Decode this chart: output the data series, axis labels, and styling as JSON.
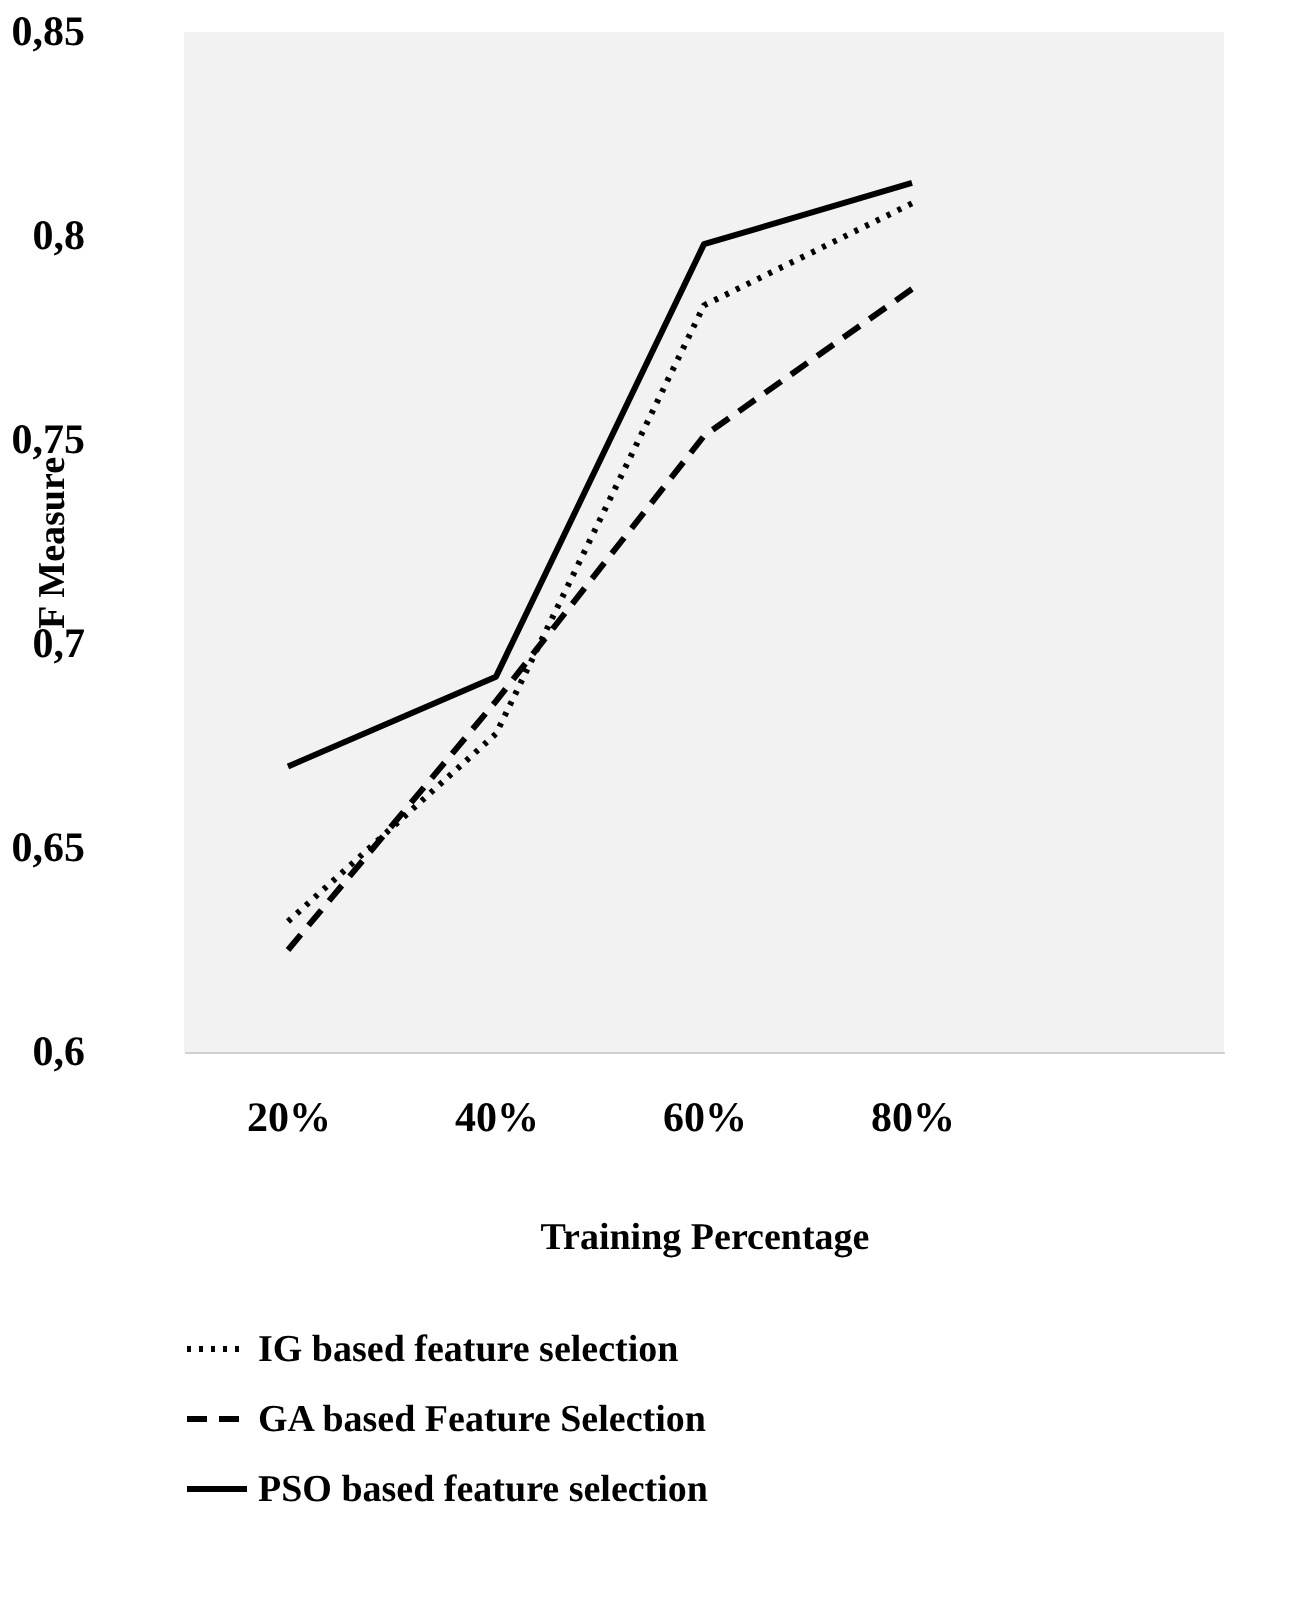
{
  "chart_data": {
    "type": "line",
    "xlabel": "Training Percentage",
    "ylabel": "F Measure",
    "categories": [
      "20%",
      "40%",
      "60%",
      "80%",
      null
    ],
    "series": [
      {
        "name": "IG based feature selection",
        "color": "#000000",
        "line_style": "dotted",
        "values": [
          0.632,
          0.678,
          0.783,
          0.808,
          null
        ]
      },
      {
        "name": "GA based Feature Selection",
        "color": "#000000",
        "line_style": "dashed",
        "values": [
          0.625,
          0.686,
          0.751,
          0.787,
          null
        ]
      },
      {
        "name": "PSO based feature selection",
        "color": "#000000",
        "line_style": "solid",
        "values": [
          0.67,
          0.692,
          0.798,
          0.813,
          null
        ]
      }
    ],
    "ylim": [
      0.6,
      0.85
    ],
    "yticks": [
      {
        "value": 0.6,
        "label": "0,6"
      },
      {
        "value": 0.65,
        "label": "0,65"
      },
      {
        "value": 0.7,
        "label": "0,7"
      },
      {
        "value": 0.75,
        "label": "0,75"
      },
      {
        "value": 0.8,
        "label": "0,8"
      },
      {
        "value": 0.85,
        "label": "0,85"
      }
    ],
    "grid": false,
    "legend": "bottom",
    "marker": "none"
  }
}
